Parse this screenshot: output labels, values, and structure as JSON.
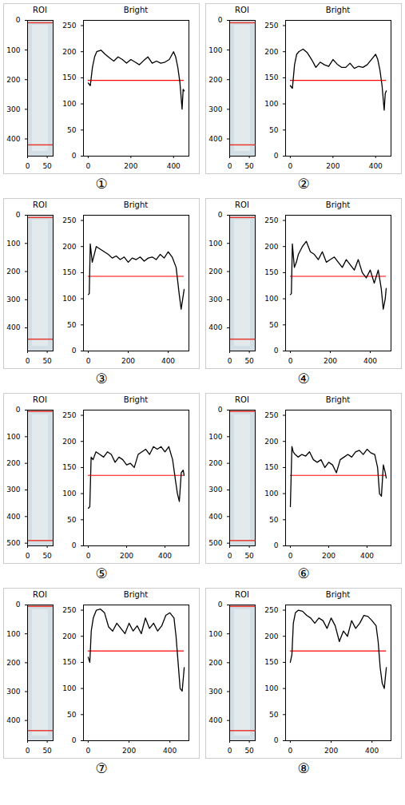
{
  "panel_labels": [
    "①",
    "②",
    "③",
    "④",
    "⑤",
    "⑥",
    "⑦",
    "⑧"
  ],
  "chart_data": [
    {
      "type": "image",
      "title": "ROI",
      "xlim": [
        0,
        65
      ],
      "ylim": [
        458,
        0
      ],
      "xticks": [
        0,
        50
      ],
      "yticks": [
        0,
        100,
        200,
        300,
        400
      ],
      "hlines": [
        8,
        420
      ],
      "color": "#e8392f"
    },
    {
      "type": "line",
      "title": "Bright",
      "x": [
        0,
        10,
        20,
        30,
        40,
        60,
        80,
        100,
        120,
        140,
        160,
        180,
        200,
        220,
        240,
        260,
        280,
        300,
        320,
        340,
        360,
        380,
        400,
        410,
        420,
        430,
        440,
        445,
        450
      ],
      "values": [
        140,
        135,
        170,
        190,
        200,
        203,
        195,
        188,
        182,
        190,
        185,
        178,
        185,
        180,
        175,
        183,
        190,
        178,
        182,
        178,
        180,
        185,
        200,
        190,
        170,
        140,
        90,
        128,
        125
      ],
      "color": "#000000",
      "threshold": 145,
      "threshold_color": "#ff0000",
      "xlim": [
        -22,
        472
      ],
      "ylim": [
        0,
        260
      ],
      "xticks": [
        0,
        200,
        400
      ],
      "yticks": [
        0,
        50,
        100,
        150,
        200,
        250
      ]
    },
    {
      "type": "image",
      "title": "ROI",
      "xlim": [
        0,
        65
      ],
      "ylim": [
        458,
        0
      ],
      "xticks": [
        0,
        50
      ],
      "yticks": [
        0,
        100,
        200,
        300,
        400
      ],
      "hlines": [
        8,
        420
      ],
      "color": "#e8392f"
    },
    {
      "type": "line",
      "title": "Bright",
      "x": [
        0,
        10,
        20,
        30,
        40,
        60,
        80,
        100,
        120,
        140,
        160,
        180,
        200,
        220,
        240,
        260,
        280,
        300,
        320,
        340,
        360,
        380,
        400,
        410,
        420,
        430,
        440,
        445,
        450
      ],
      "values": [
        135,
        130,
        175,
        195,
        200,
        205,
        198,
        185,
        170,
        180,
        175,
        172,
        185,
        176,
        170,
        170,
        178,
        168,
        172,
        170,
        175,
        185,
        195,
        185,
        165,
        135,
        88,
        120,
        125
      ],
      "color": "#000000",
      "threshold": 145,
      "threshold_color": "#ff0000",
      "xlim": [
        -22,
        472
      ],
      "ylim": [
        0,
        260
      ],
      "xticks": [
        0,
        200,
        400
      ],
      "yticks": [
        0,
        50,
        100,
        150,
        200,
        250
      ]
    },
    {
      "type": "image",
      "title": "ROI",
      "xlim": [
        0,
        65
      ],
      "ylim": [
        482,
        0
      ],
      "xticks": [
        0,
        50
      ],
      "yticks": [
        0,
        100,
        200,
        300,
        400
      ],
      "hlines": [
        8,
        440
      ],
      "color": "#e8392f"
    },
    {
      "type": "line",
      "title": "Bright",
      "x": [
        0,
        5,
        10,
        20,
        30,
        40,
        60,
        80,
        100,
        120,
        140,
        160,
        180,
        200,
        220,
        240,
        260,
        280,
        300,
        320,
        340,
        360,
        380,
        400,
        420,
        440,
        455,
        465,
        475,
        480
      ],
      "values": [
        108,
        110,
        205,
        170,
        185,
        200,
        195,
        190,
        185,
        178,
        182,
        175,
        180,
        170,
        178,
        175,
        180,
        172,
        178,
        180,
        175,
        185,
        178,
        190,
        180,
        160,
        110,
        80,
        105,
        118
      ],
      "color": "#000000",
      "threshold": 143,
      "threshold_color": "#ff0000",
      "xlim": [
        -24,
        504
      ],
      "ylim": [
        0,
        260
      ],
      "xticks": [
        0,
        200,
        400
      ],
      "yticks": [
        0,
        50,
        100,
        150,
        200,
        250
      ]
    },
    {
      "type": "image",
      "title": "ROI",
      "xlim": [
        0,
        65
      ],
      "ylim": [
        482,
        0
      ],
      "xticks": [
        0,
        50
      ],
      "yticks": [
        0,
        100,
        200,
        300,
        400
      ],
      "hlines": [
        8,
        440
      ],
      "color": "#e8392f"
    },
    {
      "type": "line",
      "title": "Bright",
      "x": [
        0,
        5,
        10,
        20,
        30,
        40,
        60,
        80,
        100,
        120,
        140,
        160,
        180,
        200,
        220,
        240,
        260,
        280,
        300,
        320,
        340,
        360,
        380,
        400,
        420,
        440,
        455,
        465,
        475,
        480
      ],
      "values": [
        108,
        110,
        205,
        160,
        170,
        185,
        200,
        210,
        190,
        185,
        175,
        190,
        170,
        175,
        180,
        170,
        160,
        175,
        165,
        155,
        175,
        150,
        140,
        155,
        130,
        155,
        120,
        80,
        100,
        120
      ],
      "color": "#000000",
      "threshold": 143,
      "threshold_color": "#ff0000",
      "xlim": [
        -24,
        504
      ],
      "ylim": [
        0,
        260
      ],
      "xticks": [
        0,
        200,
        400
      ],
      "yticks": [
        0,
        50,
        100,
        150,
        200,
        250
      ]
    },
    {
      "type": "image",
      "title": "ROI",
      "xlim": [
        0,
        65
      ],
      "ylim": [
        510,
        0
      ],
      "xticks": [
        0,
        50
      ],
      "yticks": [
        0,
        100,
        200,
        300,
        400,
        500
      ],
      "hlines": [
        5,
        490
      ],
      "color": "#e8392f"
    },
    {
      "type": "line",
      "title": "Bright",
      "x": [
        0,
        8,
        15,
        25,
        40,
        60,
        80,
        100,
        120,
        140,
        160,
        180,
        200,
        220,
        240,
        260,
        280,
        300,
        320,
        340,
        360,
        380,
        400,
        420,
        440,
        455,
        465,
        475,
        485,
        495,
        500
      ],
      "values": [
        72,
        75,
        170,
        165,
        180,
        175,
        170,
        180,
        175,
        160,
        170,
        165,
        155,
        158,
        150,
        175,
        180,
        185,
        175,
        190,
        185,
        190,
        180,
        190,
        165,
        125,
        100,
        85,
        140,
        145,
        135
      ],
      "color": "#000000",
      "threshold": 135,
      "threshold_color": "#ff0000",
      "xlim": [
        -25,
        525
      ],
      "ylim": [
        0,
        260
      ],
      "xticks": [
        0,
        200,
        400
      ],
      "yticks": [
        0,
        50,
        100,
        150,
        200,
        250
      ]
    },
    {
      "type": "image",
      "title": "ROI",
      "xlim": [
        0,
        65
      ],
      "ylim": [
        510,
        0
      ],
      "xticks": [
        0,
        50
      ],
      "yticks": [
        0,
        100,
        200,
        300,
        400,
        500
      ],
      "hlines": [
        5,
        490
      ],
      "color": "#e8392f"
    },
    {
      "type": "line",
      "title": "Bright",
      "x": [
        0,
        8,
        15,
        25,
        40,
        60,
        80,
        100,
        120,
        140,
        160,
        180,
        200,
        220,
        240,
        260,
        280,
        300,
        320,
        340,
        360,
        380,
        400,
        420,
        440,
        455,
        465,
        475,
        485,
        495,
        500
      ],
      "values": [
        75,
        190,
        180,
        175,
        170,
        175,
        172,
        180,
        165,
        160,
        165,
        150,
        160,
        155,
        140,
        165,
        170,
        175,
        170,
        180,
        183,
        175,
        185,
        178,
        175,
        150,
        100,
        95,
        155,
        140,
        130
      ],
      "color": "#000000",
      "threshold": 135,
      "threshold_color": "#ff0000",
      "xlim": [
        -25,
        525
      ],
      "ylim": [
        0,
        260
      ],
      "xticks": [
        0,
        200,
        400
      ],
      "yticks": [
        0,
        50,
        100,
        150,
        200,
        250
      ]
    },
    {
      "type": "image",
      "title": "ROI",
      "xlim": [
        0,
        65
      ],
      "ylim": [
        470,
        0
      ],
      "xticks": [
        0,
        50
      ],
      "yticks": [
        0,
        100,
        200,
        300,
        400
      ],
      "hlines": [
        5,
        435
      ],
      "color": "#e8392f"
    },
    {
      "type": "line",
      "title": "Bright",
      "x": [
        0,
        8,
        15,
        25,
        40,
        60,
        80,
        100,
        120,
        140,
        160,
        180,
        200,
        220,
        240,
        260,
        280,
        300,
        320,
        340,
        360,
        380,
        400,
        420,
        430,
        440,
        450,
        460,
        470
      ],
      "values": [
        160,
        150,
        210,
        235,
        250,
        252,
        245,
        218,
        210,
        225,
        215,
        205,
        225,
        210,
        220,
        205,
        235,
        215,
        225,
        210,
        220,
        240,
        245,
        235,
        200,
        150,
        100,
        95,
        140
      ],
      "color": "#000000",
      "threshold": 172,
      "threshold_color": "#ff0000",
      "xlim": [
        -23,
        493
      ],
      "ylim": [
        0,
        260
      ],
      "xticks": [
        0,
        200,
        400
      ],
      "yticks": [
        0,
        50,
        100,
        150,
        200,
        250
      ]
    },
    {
      "type": "image",
      "title": "ROI",
      "xlim": [
        0,
        65
      ],
      "ylim": [
        470,
        0
      ],
      "xticks": [
        0,
        50
      ],
      "yticks": [
        0,
        100,
        200,
        300,
        400
      ],
      "hlines": [
        5,
        435
      ],
      "color": "#e8392f"
    },
    {
      "type": "line",
      "title": "Bright",
      "x": [
        0,
        8,
        15,
        25,
        40,
        60,
        80,
        100,
        120,
        140,
        160,
        180,
        200,
        220,
        240,
        260,
        280,
        300,
        320,
        340,
        360,
        380,
        400,
        420,
        430,
        440,
        450,
        460,
        470
      ],
      "values": [
        150,
        165,
        225,
        245,
        250,
        248,
        240,
        235,
        225,
        235,
        230,
        215,
        235,
        220,
        190,
        210,
        200,
        230,
        215,
        225,
        240,
        238,
        230,
        220,
        190,
        140,
        110,
        100,
        140
      ],
      "color": "#000000",
      "threshold": 172,
      "threshold_color": "#ff0000",
      "xlim": [
        -23,
        493
      ],
      "ylim": [
        0,
        260
      ],
      "xticks": [
        0,
        200,
        400
      ],
      "yticks": [
        0,
        50,
        100,
        150,
        200,
        250
      ]
    }
  ]
}
